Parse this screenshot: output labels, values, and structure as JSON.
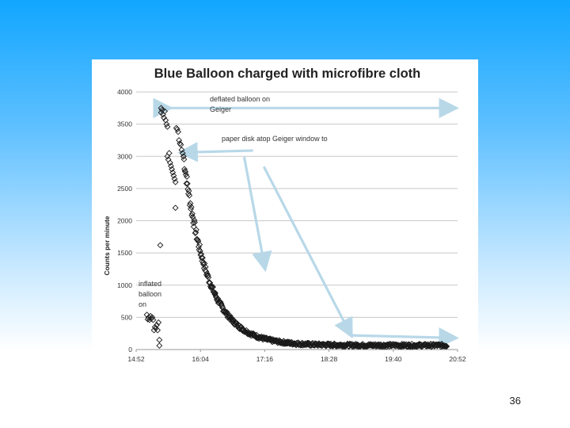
{
  "slide": {
    "page_number": "36"
  },
  "chart_data": {
    "type": "scatter",
    "title": "Blue Balloon charged with microfibre cloth",
    "xlabel": "",
    "ylabel": "Counts per minute",
    "x_ticks": [
      "14:52",
      "16:04",
      "17:16",
      "18:28",
      "19:40",
      "20:52"
    ],
    "x_range_minutes": [
      892,
      1252
    ],
    "ylim": [
      0,
      4000
    ],
    "y_ticks": [
      0,
      500,
      1000,
      1500,
      2000,
      2500,
      3000,
      3500,
      4000
    ],
    "grid": "horizontal",
    "marker": "open-diamond",
    "colors": {
      "markers": "#1a1a1a",
      "arrows": "#b8d8e8",
      "grid": "#c8c8c8"
    },
    "annotations": [
      {
        "text_lines": [
          "deflated balloon on",
          "Geiger"
        ]
      },
      {
        "text_lines": [
          "paper disk atop Geiger window to"
        ]
      },
      {
        "text_lines": [
          "inflated",
          "balloon",
          "on"
        ]
      }
    ],
    "series": [
      {
        "points": [
          [
            904,
            540
          ],
          [
            905,
            470
          ],
          [
            906,
            500
          ],
          [
            907,
            460
          ],
          [
            908,
            520
          ],
          [
            909,
            480
          ],
          [
            910,
            500
          ],
          [
            911,
            460
          ],
          [
            912,
            300
          ],
          [
            913,
            350
          ],
          [
            914,
            330
          ],
          [
            915,
            380
          ],
          [
            916,
            300
          ],
          [
            917,
            420
          ],
          [
            918,
            150
          ],
          [
            918,
            60
          ],
          [
            919,
            1620
          ],
          [
            920,
            3750
          ],
          [
            920,
            3680
          ],
          [
            921,
            3720
          ],
          [
            922,
            3650
          ],
          [
            923,
            3600
          ],
          [
            924,
            3700
          ],
          [
            925,
            3560
          ],
          [
            926,
            3500
          ],
          [
            927,
            3460
          ],
          [
            927,
            3000
          ],
          [
            928,
            2950
          ],
          [
            929,
            3050
          ],
          [
            930,
            2900
          ],
          [
            931,
            2850
          ],
          [
            932,
            2800
          ],
          [
            933,
            2750
          ],
          [
            934,
            2700
          ],
          [
            935,
            2650
          ],
          [
            936,
            2600
          ],
          [
            936,
            2200
          ],
          [
            937,
            3440
          ],
          [
            938,
            3420
          ],
          [
            939,
            3380
          ],
          [
            940,
            3250
          ],
          [
            941,
            3200
          ],
          [
            942,
            3180
          ],
          [
            943,
            3100
          ],
          [
            944,
            3050
          ],
          [
            945,
            3000
          ]
        ],
        "decay": {
          "x_start": 945,
          "x_end": 1240,
          "y0": 3000,
          "baseline": 65,
          "tau_minutes": 27
        }
      }
    ]
  }
}
